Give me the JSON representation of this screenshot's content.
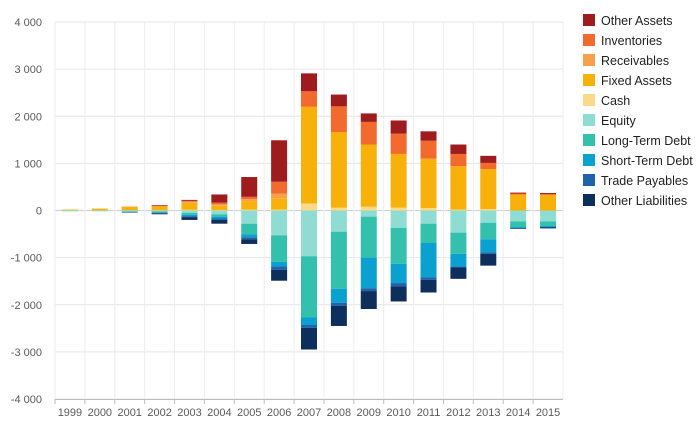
{
  "chart_data": {
    "type": "bar",
    "stacked": true,
    "categories": [
      "1999",
      "2000",
      "2001",
      "2002",
      "2003",
      "2004",
      "2005",
      "2006",
      "2007",
      "2008",
      "2009",
      "2010",
      "2011",
      "2012",
      "2013",
      "2014",
      "2015"
    ],
    "ylim": [
      -4000,
      4000
    ],
    "yticks": [
      4000,
      3000,
      2000,
      1000,
      0,
      -1000,
      -2000,
      -3000,
      -4000
    ],
    "ytick_labels": [
      "4 000",
      "3 000",
      "2 000",
      "1 000",
      "0",
      "-1 000",
      "-2 000",
      "-3 000",
      "-4 000"
    ],
    "grid": true,
    "legend_position": "right",
    "positive_order": [
      "Cash",
      "Fixed Assets",
      "Receivables",
      "Inventories",
      "Other Assets"
    ],
    "negative_order": [
      "Equity",
      "Long-Term Debt",
      "Short-Term Debt",
      "Trade Payables",
      "Other Liabilities"
    ],
    "legend_order": [
      "Other Assets",
      "Inventories",
      "Receivables",
      "Fixed Assets",
      "Cash",
      "Equity",
      "Long-Term Debt",
      "Short-Term Debt",
      "Trade Payables",
      "Other Liabilities"
    ],
    "series": [
      {
        "name": "Other Assets",
        "color": "#9e1b1e",
        "values": [
          0,
          0,
          0,
          10,
          20,
          170,
          420,
          880,
          380,
          250,
          180,
          280,
          200,
          200,
          150,
          20,
          20
        ]
      },
      {
        "name": "Inventories",
        "color": "#f26a2e",
        "values": [
          0,
          0,
          0,
          10,
          20,
          40,
          50,
          250,
          330,
          550,
          480,
          430,
          380,
          260,
          130,
          20,
          20
        ]
      },
      {
        "name": "Receivables",
        "color": "#f7a24a",
        "values": [
          0,
          0,
          10,
          10,
          20,
          30,
          40,
          100,
          0,
          0,
          0,
          0,
          0,
          0,
          0,
          0,
          0
        ]
      },
      {
        "name": "Fixed Assets",
        "color": "#f7b10a",
        "values": [
          15,
          35,
          70,
          80,
          150,
          90,
          180,
          240,
          2050,
          1600,
          1320,
          1140,
          1050,
          920,
          850,
          340,
          330
        ]
      },
      {
        "name": "Cash",
        "color": "#fad98a",
        "values": [
          5,
          5,
          5,
          5,
          15,
          10,
          20,
          20,
          150,
          60,
          80,
          60,
          50,
          20,
          30,
          0,
          0
        ]
      },
      {
        "name": "Equity",
        "color": "#8fdcd2",
        "values": [
          -10,
          -10,
          -15,
          -20,
          -50,
          -80,
          -280,
          -530,
          -970,
          -450,
          -130,
          -370,
          -280,
          -470,
          -260,
          -230,
          -230
        ]
      },
      {
        "name": "Long-Term Debt",
        "color": "#33c0ad",
        "values": [
          -5,
          -5,
          -10,
          -20,
          -40,
          -50,
          -230,
          -560,
          -1300,
          -1210,
          -870,
          -760,
          -410,
          -450,
          -350,
          -120,
          -100
        ]
      },
      {
        "name": "Short-Term Debt",
        "color": "#0aa0d0",
        "values": [
          0,
          0,
          -10,
          -15,
          -30,
          -40,
          -60,
          -100,
          -160,
          -300,
          -650,
          -410,
          -730,
          -270,
          -280,
          -20,
          -20
        ]
      },
      {
        "name": "Trade Payables",
        "color": "#1f63ad",
        "values": [
          0,
          0,
          0,
          -5,
          -20,
          -30,
          -40,
          -70,
          -60,
          -60,
          -60,
          -70,
          -50,
          -20,
          -30,
          -10,
          -10
        ]
      },
      {
        "name": "Other Liabilities",
        "color": "#0e2f5c",
        "values": [
          0,
          0,
          -10,
          -20,
          -60,
          -80,
          -100,
          -230,
          -460,
          -430,
          -380,
          -320,
          -270,
          -240,
          -250,
          -10,
          -20
        ]
      }
    ]
  }
}
